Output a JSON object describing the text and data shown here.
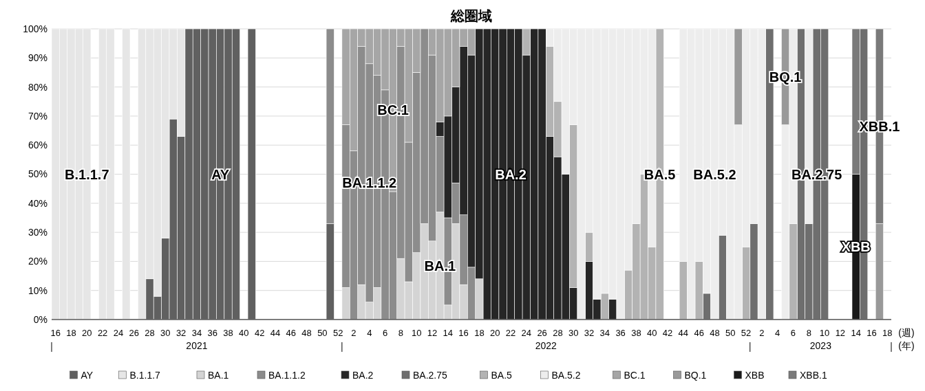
{
  "chart_data": {
    "type": "bar",
    "stacked": true,
    "title": "総圏域",
    "xlabel": "(週)",
    "x": [
      "2021-04-19",
      "2021-04-26",
      "2021-05-03",
      "2021-05-10",
      "2021-05-17",
      "2021-05-24",
      "2021-05-31",
      "2021-06-07",
      "2021-06-14",
      "2021-06-21",
      "2021-06-28",
      "2021-07-05",
      "2021-07-12",
      "2021-07-19",
      "2021-07-26",
      "2021-08-02",
      "2021-08-09",
      "2021-08-16",
      "2021-08-23",
      "2021-08-30",
      "2021-09-06",
      "2021-09-13",
      "2021-09-20",
      "2021-09-27",
      "2021-10-04",
      "2021-10-11",
      "2021-10-18",
      "2021-10-25",
      "2021-11-01",
      "2021-11-08",
      "2021-11-15",
      "2021-11-22",
      "2021-11-29",
      "2021-12-06",
      "2021-12-13",
      "2021-12-20",
      "2021-12-27",
      "2022-01-03",
      "2022-01-10",
      "2022-01-17",
      "2022-01-24",
      "2022-01-31",
      "2022-02-07",
      "2022-02-14",
      "2022-02-21",
      "2022-02-28",
      "2022-03-07",
      "2022-03-14",
      "2022-03-21",
      "2022-03-28",
      "2022-04-04",
      "2022-04-11",
      "2022-04-18",
      "2022-04-25",
      "2022-05-02",
      "2022-05-09",
      "2022-05-16",
      "2022-05-23",
      "2022-05-30",
      "2022-06-06",
      "2022-06-13",
      "2022-06-20",
      "2022-06-27",
      "2022-07-04",
      "2022-07-11",
      "2022-07-18",
      "2022-07-25",
      "2022-08-01",
      "2022-08-08",
      "2022-08-15",
      "2022-08-22",
      "2022-08-29",
      "2022-09-05",
      "2022-09-12",
      "2022-09-19",
      "2022-09-26",
      "2022-10-03",
      "2022-10-10",
      "2022-10-17",
      "2022-10-24",
      "2022-10-31",
      "2022-11-07",
      "2022-11-14",
      "2022-11-21",
      "2022-11-28",
      "2022-12-05",
      "2022-12-12",
      "2022-12-19",
      "2022-12-26",
      "2023-01-02",
      "2023-01-09",
      "2023-01-16",
      "2023-01-23",
      "2023-01-30",
      "2023-02-06",
      "2023-02-13",
      "2023-02-20",
      "2023-02-27",
      "2023-03-06",
      "2023-03-13",
      "2023-03-20",
      "2023-03-27",
      "2023-04-03",
      "2023-04-10",
      "2023-04-17",
      "2023-04-24"
    ],
    "xlim": [
      "2021-04-15T12:00",
      "2023-05-04T12:00"
    ],
    "xticks": [
      {
        "value": "2021-04-19",
        "label": "16"
      },
      {
        "value": "2021-05-03",
        "label": "18"
      },
      {
        "value": "2021-05-17",
        "label": "20"
      },
      {
        "value": "2021-05-31",
        "label": "22"
      },
      {
        "value": "2021-06-14",
        "label": "24"
      },
      {
        "value": "2021-06-28",
        "label": "26"
      },
      {
        "value": "2021-07-12",
        "label": "28"
      },
      {
        "value": "2021-07-26",
        "label": "30"
      },
      {
        "value": "2021-08-09",
        "label": "32"
      },
      {
        "value": "2021-08-23",
        "label": "34"
      },
      {
        "value": "2021-09-06",
        "label": "36"
      },
      {
        "value": "2021-09-20",
        "label": "38"
      },
      {
        "value": "2021-10-04",
        "label": "40"
      },
      {
        "value": "2021-10-18",
        "label": "42"
      },
      {
        "value": "2021-11-01",
        "label": "44"
      },
      {
        "value": "2021-11-15",
        "label": "46"
      },
      {
        "value": "2021-11-29",
        "label": "48"
      },
      {
        "value": "2021-12-13",
        "label": "50"
      },
      {
        "value": "2021-12-27",
        "label": "52"
      },
      {
        "value": "2022-01-10",
        "label": "2"
      },
      {
        "value": "2022-01-24",
        "label": "4"
      },
      {
        "value": "2022-02-07",
        "label": "6"
      },
      {
        "value": "2022-02-21",
        "label": "8"
      },
      {
        "value": "2022-03-07",
        "label": "10"
      },
      {
        "value": "2022-03-21",
        "label": "12"
      },
      {
        "value": "2022-04-04",
        "label": "14"
      },
      {
        "value": "2022-04-18",
        "label": "16"
      },
      {
        "value": "2022-05-02",
        "label": "18"
      },
      {
        "value": "2022-05-16",
        "label": "20"
      },
      {
        "value": "2022-05-30",
        "label": "22"
      },
      {
        "value": "2022-06-13",
        "label": "24"
      },
      {
        "value": "2022-06-27",
        "label": "26"
      },
      {
        "value": "2022-07-11",
        "label": "28"
      },
      {
        "value": "2022-07-25",
        "label": "30"
      },
      {
        "value": "2022-08-08",
        "label": "32"
      },
      {
        "value": "2022-08-22",
        "label": "34"
      },
      {
        "value": "2022-09-05",
        "label": "36"
      },
      {
        "value": "2022-09-19",
        "label": "38"
      },
      {
        "value": "2022-10-03",
        "label": "40"
      },
      {
        "value": "2022-10-17",
        "label": "42"
      },
      {
        "value": "2022-10-31",
        "label": "44"
      },
      {
        "value": "2022-11-14",
        "label": "46"
      },
      {
        "value": "2022-11-28",
        "label": "48"
      },
      {
        "value": "2022-12-12",
        "label": "50"
      },
      {
        "value": "2022-12-26",
        "label": "52"
      },
      {
        "value": "2023-01-09",
        "label": "2"
      },
      {
        "value": "2023-01-23",
        "label": "4"
      },
      {
        "value": "2023-02-06",
        "label": "6"
      },
      {
        "value": "2023-02-20",
        "label": "8"
      },
      {
        "value": "2023-03-06",
        "label": "10"
      },
      {
        "value": "2023-03-20",
        "label": "12"
      },
      {
        "value": "2023-04-03",
        "label": "14"
      },
      {
        "value": "2023-04-17",
        "label": "16"
      },
      {
        "value": "2023-05-01",
        "label": "18"
      }
    ],
    "ylim": [
      0,
      100
    ],
    "yticks": [
      {
        "value": 0,
        "label": "0%"
      },
      {
        "value": 10,
        "label": "10%"
      },
      {
        "value": 20,
        "label": "20%"
      },
      {
        "value": 30,
        "label": "30%"
      },
      {
        "value": 40,
        "label": "40%"
      },
      {
        "value": 50,
        "label": "50%"
      },
      {
        "value": 60,
        "label": "60%"
      },
      {
        "value": 70,
        "label": "70%"
      },
      {
        "value": 80,
        "label": "80%"
      },
      {
        "value": 90,
        "label": "90%"
      },
      {
        "value": 100,
        "label": "100%"
      }
    ],
    "grid": "y",
    "legend": "bottom",
    "series": [
      {
        "name": "AY",
        "color": "#606060",
        "values": [
          null,
          null,
          null,
          null,
          null,
          null,
          null,
          null,
          null,
          null,
          null,
          null,
          14,
          8,
          28,
          69,
          63,
          100,
          100,
          100,
          100,
          100,
          100,
          100,
          null,
          100,
          null,
          null,
          null,
          null,
          null,
          null,
          null,
          null,
          null,
          33,
          null,
          null,
          null,
          null,
          null,
          null,
          null,
          null,
          null,
          null,
          null,
          null,
          null,
          null,
          null,
          null,
          null,
          null,
          null,
          null,
          null,
          null,
          null,
          null,
          null,
          null,
          null,
          null,
          null,
          null,
          null,
          null,
          null,
          null,
          null,
          null,
          null,
          null,
          null,
          null,
          null,
          null,
          null,
          null,
          null,
          null,
          null,
          null,
          null,
          null,
          null,
          null,
          null,
          null,
          null,
          null,
          null,
          null,
          null,
          null,
          null,
          null,
          null,
          null,
          null,
          null,
          null,
          null,
          null,
          null
        ]
      },
      {
        "name": "B.1.1.7",
        "color": "#e6e6e6",
        "values": [
          100,
          100,
          100,
          100,
          100,
          null,
          100,
          100,
          null,
          100,
          null,
          100,
          86,
          92,
          72,
          31,
          37,
          null,
          null,
          null,
          null,
          null,
          null,
          null,
          null,
          null,
          null,
          null,
          null,
          null,
          null,
          null,
          null,
          null,
          null,
          null,
          null,
          null,
          null,
          null,
          null,
          null,
          null,
          null,
          null,
          null,
          null,
          null,
          null,
          null,
          null,
          null,
          null,
          null,
          null,
          null,
          null,
          null,
          null,
          null,
          null,
          null,
          null,
          null,
          null,
          null,
          null,
          null,
          null,
          null,
          null,
          null,
          null,
          null,
          null,
          null,
          null,
          null,
          null,
          null,
          null,
          null,
          null,
          null,
          null,
          null,
          null,
          null,
          null,
          null,
          null,
          null,
          null,
          null,
          null,
          null,
          null,
          null,
          null,
          null,
          null,
          null,
          null,
          null,
          null,
          null
        ]
      },
      {
        "name": "BA.1",
        "color": "#d4d4d4",
        "values": [
          null,
          null,
          null,
          null,
          null,
          null,
          null,
          null,
          null,
          null,
          null,
          null,
          null,
          null,
          null,
          null,
          null,
          null,
          null,
          null,
          null,
          null,
          null,
          null,
          null,
          null,
          null,
          null,
          null,
          null,
          null,
          null,
          null,
          null,
          null,
          null,
          null,
          11,
          null,
          12,
          6,
          11,
          null,
          null,
          21,
          13,
          23,
          33,
          27,
          37,
          5,
          33,
          12,
          null,
          14,
          null,
          null,
          null,
          null,
          null,
          null,
          null,
          null,
          null,
          null,
          null,
          null,
          null,
          null,
          null,
          null,
          null,
          null,
          null,
          null,
          null,
          null,
          null,
          null,
          null,
          null,
          null,
          null,
          null,
          null,
          null,
          null,
          null,
          null,
          null,
          null,
          null,
          null,
          null,
          null,
          null,
          null,
          null,
          null,
          null,
          null,
          null,
          null,
          null,
          null,
          null
        ]
      },
      {
        "name": "BA.1.1.2",
        "color": "#8c8c8c",
        "values": [
          null,
          null,
          null,
          null,
          null,
          null,
          null,
          null,
          null,
          null,
          null,
          null,
          null,
          null,
          null,
          null,
          null,
          null,
          null,
          null,
          null,
          null,
          null,
          null,
          null,
          null,
          null,
          null,
          null,
          null,
          null,
          null,
          null,
          null,
          null,
          67,
          null,
          56,
          58,
          82,
          82,
          73,
          79,
          44,
          73,
          48,
          62,
          67,
          64,
          26,
          30,
          14,
          24,
          18,
          null,
          null,
          null,
          null,
          null,
          null,
          null,
          null,
          null,
          null,
          null,
          null,
          null,
          null,
          null,
          null,
          null,
          null,
          null,
          null,
          null,
          null,
          null,
          null,
          null,
          null,
          null,
          null,
          null,
          null,
          null,
          null,
          null,
          null,
          null,
          null,
          null,
          null,
          null,
          null,
          null,
          null,
          null,
          null,
          null,
          null,
          null,
          null,
          null,
          null,
          null,
          null
        ]
      },
      {
        "name": "BA.2",
        "color": "#262626",
        "values": [
          null,
          null,
          null,
          null,
          null,
          null,
          null,
          null,
          null,
          null,
          null,
          null,
          null,
          null,
          null,
          null,
          null,
          null,
          null,
          null,
          null,
          null,
          null,
          null,
          null,
          null,
          null,
          null,
          null,
          null,
          null,
          null,
          null,
          null,
          null,
          null,
          null,
          null,
          null,
          null,
          null,
          null,
          null,
          null,
          null,
          null,
          null,
          null,
          null,
          5,
          35,
          33,
          58,
          73,
          86,
          100,
          100,
          100,
          100,
          100,
          91,
          100,
          100,
          63,
          56,
          50,
          11,
          null,
          20,
          7,
          null,
          7,
          null,
          null,
          null,
          null,
          null,
          null,
          null,
          null,
          null,
          null,
          null,
          null,
          null,
          null,
          null,
          null,
          null,
          null,
          null,
          null,
          null,
          null,
          null,
          null,
          null,
          null,
          null,
          null,
          null,
          null,
          null,
          null,
          null,
          null
        ]
      },
      {
        "name": "BA.2.75",
        "color": "#6e6e6e",
        "values": [
          null,
          null,
          null,
          null,
          null,
          null,
          null,
          null,
          null,
          null,
          null,
          null,
          null,
          null,
          null,
          null,
          null,
          null,
          null,
          null,
          null,
          null,
          null,
          null,
          null,
          null,
          null,
          null,
          null,
          null,
          null,
          null,
          null,
          null,
          null,
          null,
          null,
          null,
          null,
          null,
          null,
          null,
          null,
          null,
          null,
          null,
          null,
          null,
          null,
          null,
          null,
          null,
          null,
          null,
          null,
          null,
          null,
          null,
          null,
          null,
          null,
          null,
          null,
          null,
          null,
          null,
          null,
          null,
          null,
          null,
          null,
          null,
          null,
          null,
          null,
          null,
          null,
          null,
          null,
          null,
          null,
          null,
          null,
          9,
          null,
          29,
          null,
          null,
          null,
          33,
          null,
          100,
          null,
          null,
          null,
          100,
          33,
          100,
          100,
          null,
          null,
          null,
          null,
          100,
          null,
          null
        ]
      },
      {
        "name": "BA.5",
        "color": "#b3b3b3",
        "values": [
          null,
          null,
          null,
          null,
          null,
          null,
          null,
          null,
          null,
          null,
          null,
          null,
          null,
          null,
          null,
          null,
          null,
          null,
          null,
          null,
          null,
          null,
          null,
          null,
          null,
          null,
          null,
          null,
          null,
          null,
          null,
          null,
          null,
          null,
          null,
          null,
          null,
          null,
          null,
          null,
          null,
          null,
          null,
          null,
          null,
          null,
          null,
          null,
          null,
          null,
          null,
          null,
          null,
          null,
          null,
          null,
          null,
          null,
          null,
          null,
          9,
          null,
          null,
          31,
          19,
          null,
          56,
          null,
          10,
          null,
          9,
          null,
          null,
          17,
          33,
          50,
          25,
          100,
          null,
          null,
          20,
          null,
          20,
          null,
          null,
          null,
          null,
          null,
          25,
          null,
          null,
          null,
          null,
          null,
          33,
          null,
          null,
          null,
          null,
          null,
          null,
          null,
          null,
          null,
          null,
          null
        ]
      },
      {
        "name": "BA.5.2",
        "color": "#ededed",
        "values": [
          null,
          null,
          null,
          null,
          null,
          null,
          null,
          null,
          null,
          null,
          null,
          null,
          null,
          null,
          null,
          null,
          null,
          null,
          null,
          null,
          null,
          null,
          null,
          null,
          null,
          null,
          null,
          null,
          null,
          null,
          null,
          null,
          null,
          null,
          null,
          null,
          null,
          null,
          null,
          null,
          null,
          null,
          null,
          null,
          null,
          null,
          null,
          null,
          null,
          null,
          null,
          null,
          null,
          null,
          null,
          null,
          null,
          null,
          null,
          null,
          null,
          null,
          null,
          6,
          25,
          50,
          33,
          100,
          70,
          93,
          91,
          93,
          100,
          83,
          67,
          50,
          75,
          null,
          null,
          null,
          80,
          100,
          80,
          91,
          100,
          71,
          100,
          67,
          75,
          67,
          100,
          null,
          null,
          67,
          67,
          null,
          67,
          null,
          null,
          null,
          null,
          null,
          null,
          null,
          null,
          null
        ]
      },
      {
        "name": "BC.1",
        "color": "#a6a6a6",
        "values": [
          null,
          null,
          null,
          null,
          null,
          null,
          null,
          null,
          null,
          null,
          null,
          null,
          null,
          null,
          null,
          null,
          null,
          null,
          null,
          null,
          null,
          null,
          null,
          null,
          null,
          null,
          null,
          null,
          null,
          null,
          null,
          null,
          null,
          null,
          null,
          null,
          null,
          33,
          42,
          6,
          12,
          16,
          21,
          56,
          6,
          39,
          15,
          null,
          9,
          32,
          30,
          20,
          6,
          9,
          null,
          null,
          null,
          null,
          null,
          null,
          null,
          null,
          null,
          null,
          null,
          null,
          null,
          null,
          null,
          null,
          null,
          null,
          null,
          null,
          null,
          null,
          null,
          null,
          null,
          null,
          null,
          null,
          null,
          null,
          null,
          null,
          null,
          null,
          null,
          null,
          null,
          null,
          null,
          null,
          null,
          null,
          null,
          null,
          null,
          null,
          null,
          null,
          null,
          null,
          null,
          null
        ]
      },
      {
        "name": "BQ.1",
        "color": "#999999",
        "values": [
          null,
          null,
          null,
          null,
          null,
          null,
          null,
          null,
          null,
          null,
          null,
          null,
          null,
          null,
          null,
          null,
          null,
          null,
          null,
          null,
          null,
          null,
          null,
          null,
          null,
          null,
          null,
          null,
          null,
          null,
          null,
          null,
          null,
          null,
          null,
          null,
          null,
          null,
          null,
          null,
          null,
          null,
          null,
          null,
          null,
          null,
          null,
          null,
          null,
          null,
          null,
          null,
          null,
          null,
          null,
          null,
          null,
          null,
          null,
          null,
          null,
          null,
          null,
          null,
          null,
          null,
          null,
          null,
          null,
          null,
          null,
          null,
          null,
          null,
          null,
          null,
          null,
          null,
          null,
          null,
          null,
          null,
          null,
          null,
          null,
          null,
          null,
          33,
          null,
          null,
          null,
          null,
          null,
          33,
          null,
          null,
          null,
          null,
          null,
          null,
          null,
          null,
          null,
          null,
          null,
          33
        ]
      },
      {
        "name": "XBB",
        "color": "#1a1a1a",
        "values": [
          null,
          null,
          null,
          null,
          null,
          null,
          null,
          null,
          null,
          null,
          null,
          null,
          null,
          null,
          null,
          null,
          null,
          null,
          null,
          null,
          null,
          null,
          null,
          null,
          null,
          null,
          null,
          null,
          null,
          null,
          null,
          null,
          null,
          null,
          null,
          null,
          null,
          null,
          null,
          null,
          null,
          null,
          null,
          null,
          null,
          null,
          null,
          null,
          null,
          null,
          null,
          null,
          null,
          null,
          null,
          null,
          null,
          null,
          null,
          null,
          null,
          null,
          null,
          null,
          null,
          null,
          null,
          null,
          null,
          null,
          null,
          null,
          null,
          null,
          null,
          null,
          null,
          null,
          null,
          null,
          null,
          null,
          null,
          null,
          null,
          null,
          null,
          null,
          null,
          null,
          null,
          null,
          null,
          null,
          null,
          null,
          null,
          null,
          null,
          null,
          null,
          null,
          50,
          null,
          null,
          null
        ]
      },
      {
        "name": "XBB.1",
        "color": "#7a7a7a",
        "values": [
          null,
          null,
          null,
          null,
          null,
          null,
          null,
          null,
          null,
          null,
          null,
          null,
          null,
          null,
          null,
          null,
          null,
          null,
          null,
          null,
          null,
          null,
          null,
          null,
          null,
          null,
          null,
          null,
          null,
          null,
          null,
          null,
          null,
          null,
          null,
          null,
          null,
          null,
          null,
          null,
          null,
          null,
          null,
          null,
          null,
          null,
          null,
          null,
          null,
          null,
          null,
          null,
          null,
          null,
          null,
          null,
          null,
          null,
          null,
          null,
          null,
          null,
          null,
          null,
          null,
          null,
          null,
          null,
          null,
          null,
          null,
          null,
          null,
          null,
          null,
          null,
          null,
          null,
          null,
          null,
          null,
          null,
          null,
          null,
          null,
          null,
          null,
          null,
          null,
          null,
          null,
          null,
          null,
          null,
          null,
          null,
          null,
          null,
          null,
          null,
          null,
          null,
          50,
          null,
          null,
          67
        ]
      }
    ],
    "annotations": [
      "2021",
      "2022",
      "2023",
      "(年)"
    ]
  }
}
